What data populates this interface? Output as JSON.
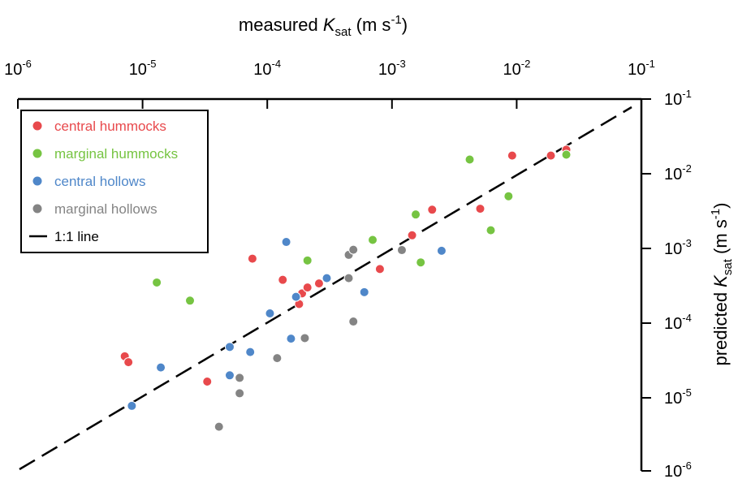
{
  "colors": {
    "central_hummocks": "#e8494c",
    "marginal_hummocks": "#76c442",
    "central_hollows": "#4f87c9",
    "marginal_hollows": "#848484",
    "line": "#000000"
  },
  "chart_data": {
    "type": "scatter",
    "x_axis": {
      "title_prefix": "measured ",
      "title_symbol": "K",
      "title_sub": "sat",
      "title_suffix": " (m s",
      "title_exp": "-1",
      "title_close": ")",
      "position": "top",
      "scale": "log",
      "lim": [
        1e-06,
        0.1
      ],
      "tick_labels": [
        {
          "base": "10",
          "exp": "-6"
        },
        {
          "base": "10",
          "exp": "-5"
        },
        {
          "base": "10",
          "exp": "-4"
        },
        {
          "base": "10",
          "exp": "-3"
        },
        {
          "base": "10",
          "exp": "-2"
        },
        {
          "base": "10",
          "exp": "-1"
        }
      ]
    },
    "y_axis": {
      "title_prefix": "predicted ",
      "title_symbol": "K",
      "title_sub": "sat",
      "title_suffix": " (m s",
      "title_exp": "-1",
      "title_close": ")",
      "position": "right",
      "scale": "log",
      "lim": [
        1e-06,
        0.1
      ],
      "tick_labels": [
        {
          "base": "10",
          "exp": "-1"
        },
        {
          "base": "10",
          "exp": "-2"
        },
        {
          "base": "10",
          "exp": "-3"
        },
        {
          "base": "10",
          "exp": "-4"
        },
        {
          "base": "10",
          "exp": "-5"
        },
        {
          "base": "10",
          "exp": "-6"
        }
      ]
    },
    "grid": false,
    "legend_position": "top-left",
    "legend": [
      {
        "label": "central hummocks",
        "key": "central_hummocks",
        "kind": "marker"
      },
      {
        "label": "marginal hummocks",
        "key": "marginal_hummocks",
        "kind": "marker"
      },
      {
        "label": "central hollows",
        "key": "central_hollows",
        "kind": "marker"
      },
      {
        "label": "marginal hollows",
        "key": "marginal_hollows",
        "kind": "marker"
      },
      {
        "label": "1:1 line",
        "key": "line",
        "kind": "line"
      }
    ],
    "reference_line": {
      "name": "1:1 line",
      "x": [
        1e-06,
        0.1
      ],
      "y": [
        1e-06,
        0.1
      ],
      "style": "dashed"
    },
    "series": [
      {
        "name": "central hummocks",
        "key": "central_hummocks",
        "x": [
          7.2e-06,
          7.7e-06,
          3.3e-05,
          7.6e-05,
          0.000133,
          0.00018,
          0.00019,
          0.00021,
          0.00026,
          0.0008,
          0.00145,
          0.0021,
          0.0051,
          0.0092,
          0.0188,
          0.025
        ],
        "y": [
          3.6e-05,
          3e-05,
          1.65e-05,
          0.00073,
          0.00038,
          0.00018,
          0.00025,
          0.0003,
          0.00034,
          0.00053,
          0.0015,
          0.0033,
          0.0034,
          0.0175,
          0.0175,
          0.021
        ]
      },
      {
        "name": "marginal hummocks",
        "key": "marginal_hummocks",
        "x": [
          1.3e-05,
          2.4e-05,
          0.00021,
          0.0007,
          0.00155,
          0.0017,
          0.0042,
          0.0062,
          0.0086,
          0.025
        ],
        "y": [
          0.00035,
          0.0002,
          0.00069,
          0.0013,
          0.00285,
          0.00065,
          0.0155,
          0.00175,
          0.005,
          0.018
        ]
      },
      {
        "name": "central hollows",
        "key": "central_hollows",
        "x": [
          8.2e-06,
          1.4e-05,
          5e-05,
          5e-05,
          7.3e-05,
          0.000105,
          0.000142,
          0.000155,
          0.00017,
          0.0003,
          0.0006,
          0.0025
        ],
        "y": [
          7.8e-06,
          2.55e-05,
          2e-05,
          4.8e-05,
          4.1e-05,
          0.000135,
          0.00122,
          6.2e-05,
          0.000225,
          0.0004,
          0.00026,
          0.00093
        ]
      },
      {
        "name": "marginal hollows",
        "key": "marginal_hollows",
        "x": [
          4.1e-05,
          6e-05,
          6e-05,
          0.00012,
          0.0002,
          0.00045,
          0.00045,
          0.00049,
          0.00049,
          0.0012
        ],
        "y": [
          4.1e-06,
          1.85e-05,
          1.15e-05,
          3.4e-05,
          6.3e-05,
          0.00082,
          0.0004,
          0.00096,
          0.000105,
          0.00095
        ]
      }
    ]
  }
}
